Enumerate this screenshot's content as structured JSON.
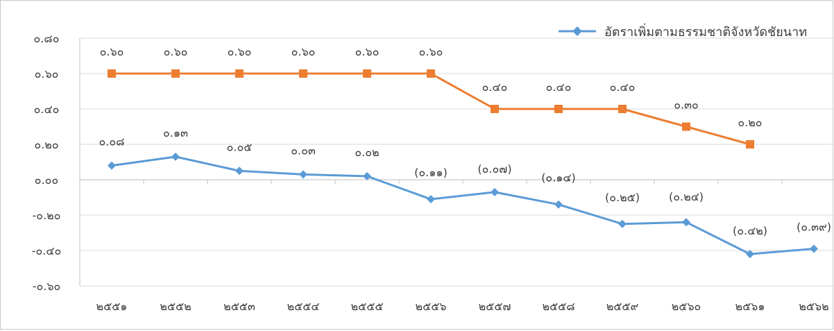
{
  "chart_data": {
    "type": "line",
    "categories": [
      "๒๕๕๑",
      "๒๕๕๒",
      "๒๕๕๓",
      "๒๕๕๔",
      "๒๕๕๕",
      "๒๕๕๖",
      "๒๕๕๗",
      "๒๕๕๘",
      "๒๕๕๙",
      "๒๕๖๐",
      "๒๕๖๑",
      "๒๕๖๒"
    ],
    "ylim": [
      -0.6,
      0.8
    ],
    "yticks": [
      0.8,
      0.6,
      0.4,
      0.2,
      0.0,
      -0.2,
      -0.4,
      -0.6
    ],
    "ytick_labels": [
      "๐.๘๐",
      "๐.๖๐",
      "๐.๔๐",
      "๐.๒๐",
      "๐.๐๐",
      "-๐.๒๐",
      "-๐.๔๐",
      "-๐.๖๐"
    ],
    "grid": true,
    "legend_position": "top-right",
    "series": [
      {
        "name": "อัตราเพิ่มตามธรรมชาติจังหวัดชัยนาท",
        "color": "#5b9bd5",
        "marker": "diamond",
        "values": [
          0.08,
          0.13,
          0.05,
          0.03,
          0.02,
          -0.11,
          -0.07,
          -0.14,
          -0.25,
          -0.24,
          -0.42,
          -0.39
        ],
        "labels": [
          "๐.๐๘",
          "๐.๑๓",
          "๐.๐๕",
          "๐.๐๓",
          "๐.๐๒",
          "(๐.๑๑)",
          "(๐.๐๗)",
          "(๐.๑๔)",
          "(๐.๒๕)",
          "(๐.๒๔)",
          "(๐.๔๒)",
          "(๐.๓๙)"
        ]
      },
      {
        "color": "#ed7d31",
        "marker": "square",
        "values": [
          0.6,
          0.6,
          0.6,
          0.6,
          0.6,
          0.6,
          0.4,
          0.4,
          0.4,
          0.3,
          0.2,
          null
        ],
        "labels": [
          "๐.๖๐",
          "๐.๖๐",
          "๐.๖๐",
          "๐.๖๐",
          "๐.๖๐",
          "๐.๖๐",
          "๐.๔๐",
          "๐.๔๐",
          "๐.๔๐",
          "๐.๓๐",
          "๐.๒๐",
          ""
        ]
      }
    ]
  }
}
